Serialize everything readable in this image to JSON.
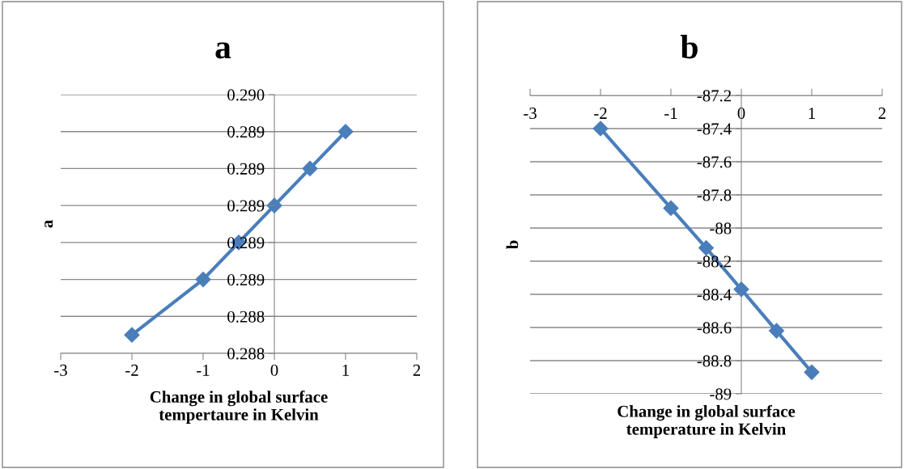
{
  "chart_data": [
    {
      "type": "line",
      "title": "a",
      "xlabel": "Change in global surface\ntempertaure in Kelvin",
      "ylabel": "a",
      "x": [
        -2,
        -1,
        -0.5,
        0,
        0.5,
        1
      ],
      "series": [
        {
          "color": "#4a7ebb",
          "values": [
            0.2883,
            0.2886,
            0.2888,
            0.289,
            0.2892,
            0.2894
          ]
        }
      ],
      "xlim": [
        -3,
        2
      ],
      "xticks": [
        -3,
        -2,
        -1,
        0,
        1,
        2
      ],
      "ylim": [
        0.2882,
        0.2896
      ],
      "yticks": [
        {
          "value": 0.2882,
          "label": "0.288"
        },
        {
          "value": 0.2884,
          "label": "0.288"
        },
        {
          "value": 0.2886,
          "label": "0.289"
        },
        {
          "value": 0.2888,
          "label": "0.289"
        },
        {
          "value": 0.289,
          "label": "0.289"
        },
        {
          "value": 0.2892,
          "label": "0.289"
        },
        {
          "value": 0.2894,
          "label": "0.289"
        },
        {
          "value": 0.2896,
          "label": "0.290"
        }
      ],
      "grid": "y",
      "marker": "diamond",
      "line_style": "solid"
    },
    {
      "type": "line",
      "title": "b",
      "xlabel": "Change in global surface\ntemperature in Kelvin",
      "ylabel": "b",
      "x": [
        -2,
        -1,
        -0.5,
        0,
        0.5,
        1
      ],
      "series": [
        {
          "color": "#4a7ebb",
          "values": [
            -87.4,
            -87.88,
            -88.12,
            -88.37,
            -88.62,
            -88.87
          ]
        }
      ],
      "xlim": [
        -3,
        2
      ],
      "xticks": [
        -3,
        -2,
        -1,
        0,
        1,
        2
      ],
      "ylim": [
        -89,
        -87.2
      ],
      "yticks": [
        -89,
        -88.8,
        -88.6,
        -88.4,
        -88.2,
        -88,
        -87.8,
        -87.6,
        -87.4,
        -87.2
      ],
      "grid": "y",
      "marker": "diamond",
      "line_style": "solid"
    }
  ]
}
